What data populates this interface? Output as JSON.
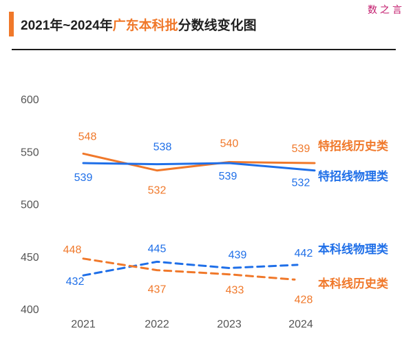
{
  "watermark": "数之言",
  "title": {
    "prefix": "2021年~2024年",
    "highlight": "广东本科批",
    "suffix": "分数线变化图"
  },
  "colors": {
    "orange": "#f0782a",
    "blue": "#1f6fe8"
  },
  "chart_data": {
    "type": "line",
    "title": "2021年~2024年广东本科批分数线变化图",
    "x": [
      "2021",
      "2022",
      "2023",
      "2024"
    ],
    "ylim": [
      400,
      600
    ],
    "yticks": [
      400,
      450,
      500,
      550,
      600
    ],
    "grid": false,
    "series": [
      {
        "name": "特招线历史类",
        "values": [
          548,
          532,
          540,
          539
        ],
        "color": "#f0782a",
        "style": "solid"
      },
      {
        "name": "特招线物理类",
        "values": [
          539,
          538,
          539,
          532
        ],
        "color": "#1f6fe8",
        "style": "solid"
      },
      {
        "name": "本科线物理类",
        "values": [
          432,
          445,
          439,
          442
        ],
        "color": "#1f6fe8",
        "style": "dashed"
      },
      {
        "name": "本科线历史类",
        "values": [
          448,
          437,
          433,
          428
        ],
        "color": "#f0782a",
        "style": "dashed"
      }
    ]
  }
}
